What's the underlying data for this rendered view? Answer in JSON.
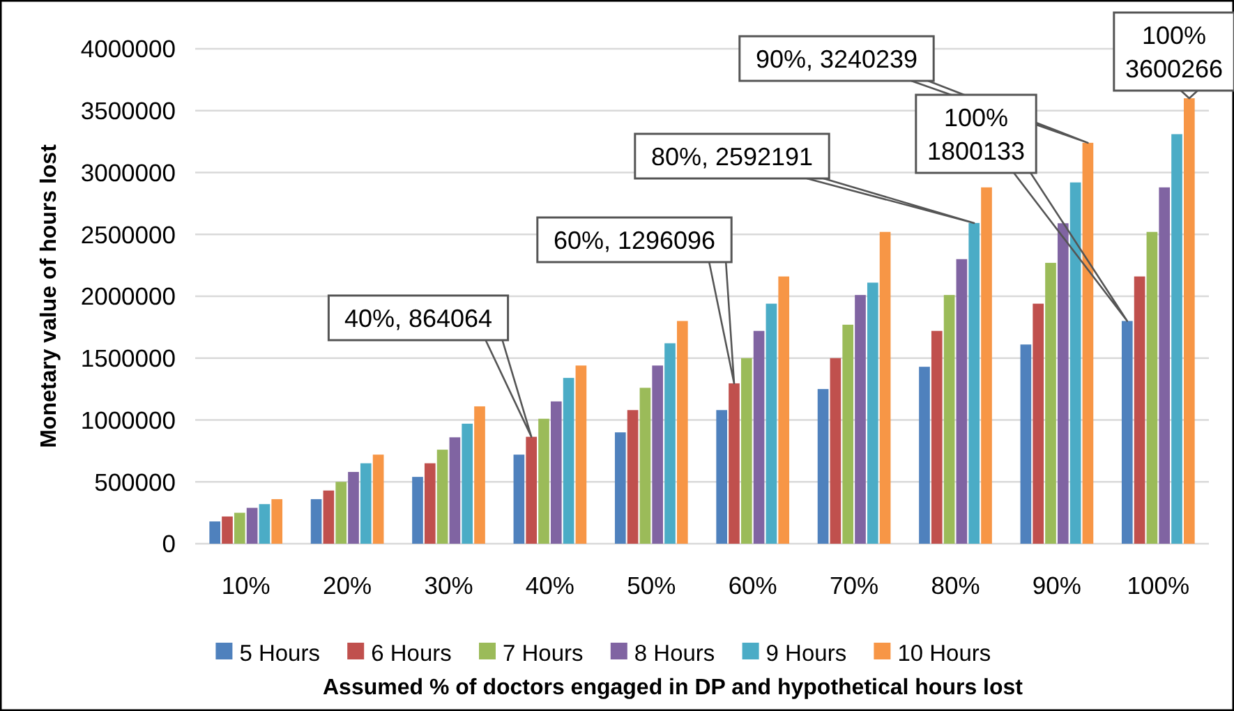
{
  "chart_data": {
    "type": "bar",
    "xlabel": "Assumed % of doctors engaged in DP and hypothetical hours lost",
    "ylabel": "Monetary value of hours lost",
    "categories": [
      "10%",
      "20%",
      "30%",
      "40%",
      "50%",
      "60%",
      "70%",
      "80%",
      "90%",
      "100%"
    ],
    "series": [
      {
        "name": "5 Hours",
        "color": "#4f81bd",
        "values": [
          180000,
          360000,
          540000,
          720000,
          900000,
          1080000,
          1250000,
          1430000,
          1610000,
          1800133
        ]
      },
      {
        "name": "6 Hours",
        "color": "#c0504d",
        "values": [
          220000,
          430000,
          650000,
          864064,
          1080000,
          1296096,
          1500000,
          1720000,
          1940000,
          2160000
        ]
      },
      {
        "name": "7 Hours",
        "color": "#9bbb59",
        "values": [
          250000,
          500000,
          760000,
          1010000,
          1260000,
          1500000,
          1770000,
          2010000,
          2270000,
          2520000
        ]
      },
      {
        "name": "8 Hours",
        "color": "#8064a2",
        "values": [
          290000,
          580000,
          860000,
          1150000,
          1440000,
          1720000,
          2010000,
          2300000,
          2590000,
          2880000
        ]
      },
      {
        "name": "9 Hours",
        "color": "#4bacc6",
        "values": [
          320000,
          650000,
          970000,
          1340000,
          1620000,
          1940000,
          2110000,
          2592191,
          2920000,
          3310000
        ]
      },
      {
        "name": "10 Hours",
        "color": "#f79646",
        "values": [
          360000,
          720000,
          1110000,
          1440000,
          1800000,
          2160000,
          2520000,
          2880000,
          3240239,
          3600266
        ]
      }
    ],
    "ylim": [
      0,
      4000000
    ],
    "yticks": [
      0,
      500000,
      1000000,
      1500000,
      2000000,
      2500000,
      3000000,
      3500000,
      4000000
    ],
    "grid": "y",
    "legend": "bottom",
    "annotations": [
      "40%, 864064",
      "60%, 1296096",
      "80%, 2592191",
      "90%, 3240239",
      "100%\n1800133",
      "100%\n3600266"
    ]
  }
}
